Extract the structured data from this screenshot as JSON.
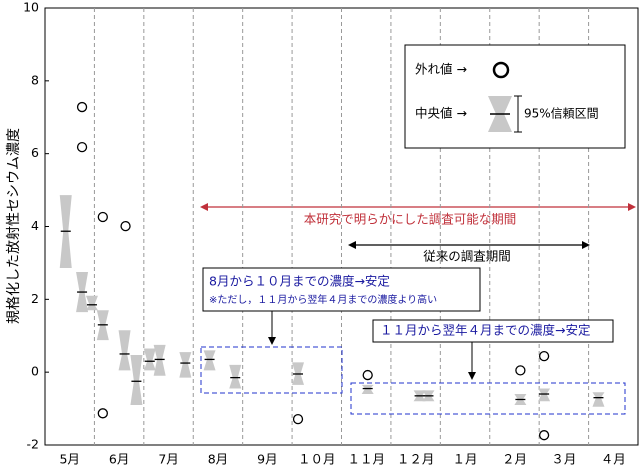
{
  "chart_data": {
    "type": "boxplot",
    "y_label": "規格化した放射性セシウム濃度",
    "categories": [
      "5月",
      "6月",
      "7月",
      "8月",
      "9月",
      "１０月",
      "１１月",
      "１２月",
      "１月",
      "２月",
      "３月",
      "４月"
    ],
    "x": [
      0.42,
      0.75,
      0.95,
      1.17,
      1.61,
      1.85,
      2.12,
      2.32,
      2.84,
      3.33,
      3.85,
      5.12,
      6.53,
      7.58,
      7.76,
      9.62,
      10.1,
      11.2
    ],
    "median": [
      3.87,
      2.2,
      1.85,
      1.3,
      0.5,
      -0.25,
      0.3,
      0.35,
      0.25,
      0.35,
      -0.15,
      -0.05,
      -0.45,
      -0.65,
      -0.65,
      -0.75,
      -0.6,
      -0.7
    ],
    "ci_low": [
      2.86,
      1.65,
      1.7,
      0.88,
      0.05,
      -0.9,
      0.05,
      -0.1,
      -0.15,
      0.05,
      -0.45,
      -0.35,
      -0.6,
      -0.8,
      -0.8,
      -0.9,
      -0.8,
      -0.95
    ],
    "ci_high": [
      4.86,
      2.75,
      2.1,
      1.7,
      1.15,
      0.47,
      0.65,
      0.75,
      0.55,
      0.6,
      0.2,
      0.27,
      -0.35,
      -0.5,
      -0.5,
      -0.6,
      -0.45,
      -0.55
    ],
    "outliers": {
      "x": [
        0.75,
        0.75,
        1.17,
        1.17,
        1.63,
        5.12,
        6.53,
        9.62,
        10.1,
        10.1
      ],
      "y": [
        7.28,
        6.18,
        4.26,
        -1.13,
        4.01,
        -1.29,
        -0.08,
        0.05,
        0.44,
        -1.73
      ]
    },
    "xlim": [
      0,
      12
    ],
    "ylim": [
      -2,
      10
    ],
    "yticks": [
      -2,
      0,
      2,
      4,
      6,
      8,
      10
    ],
    "box_color": "#c8c8c8",
    "annotations": {
      "study_period": "本研究で明らかにした調査可能な期間",
      "conventional_period": "従来の調査期間",
      "note1_line1": "8月から１０月までの濃度→安定",
      "note1_line2": "※ただし，１１月から翌年４月までの濃度より高い",
      "note2": "１１月から翌年４月までの濃度→安定"
    },
    "legend": {
      "outlier": "外れ値 →",
      "median": "中央値 →",
      "ci": "95%信頼区間"
    }
  }
}
